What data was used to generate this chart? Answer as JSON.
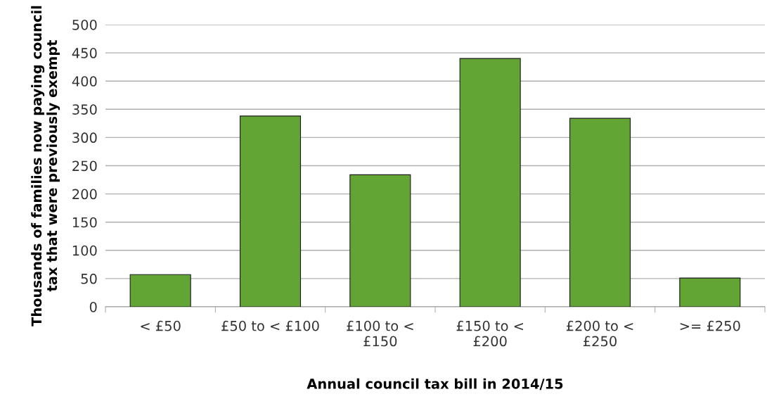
{
  "chart_data": {
    "type": "bar",
    "categories": [
      "< £50",
      "£50 to < £100",
      "£100 to <\n£150",
      "£150 to <\n£200",
      "£200 to <\n£250",
      ">= £250"
    ],
    "values": [
      57,
      338,
      234,
      440,
      334,
      51
    ],
    "color": "#62a535",
    "xlabel": "Annual council tax bill in 2014/15",
    "ylabel": "Thousands of families now paying council\ntax that were previously exempt",
    "ylim": [
      0,
      500
    ],
    "yticks": [
      0,
      50,
      100,
      150,
      200,
      250,
      300,
      350,
      400,
      450,
      500
    ],
    "grid": "y",
    "legend": false
  }
}
